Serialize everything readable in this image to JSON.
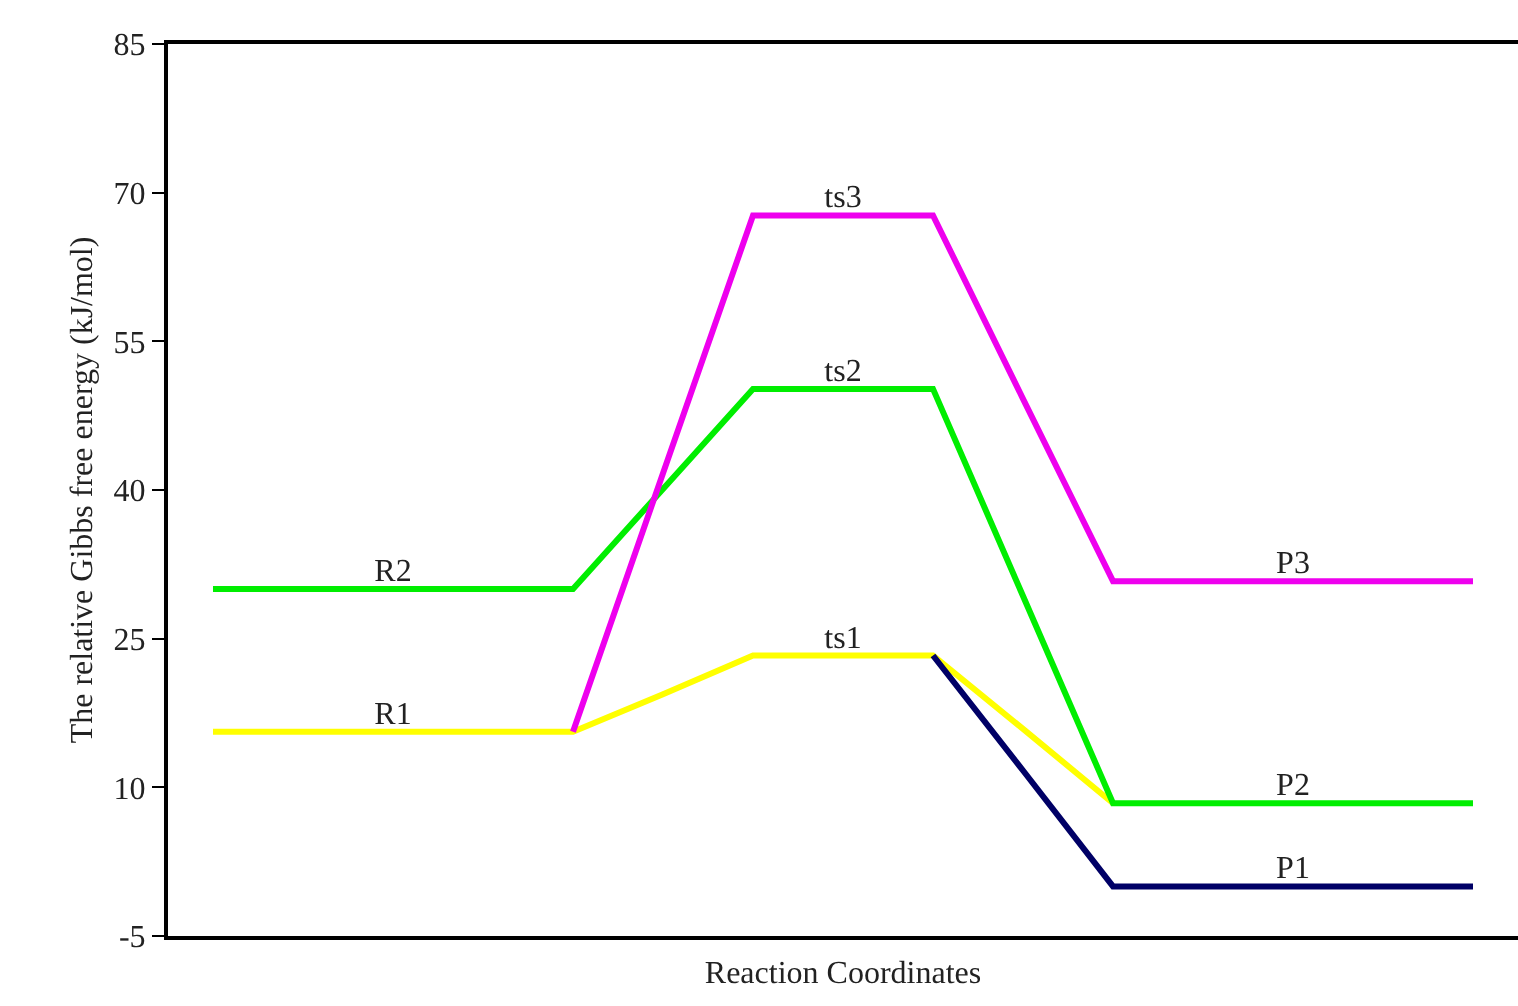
{
  "chart_data": {
    "type": "line",
    "xlabel": "Reaction Coordinates",
    "ylabel": "The relative Gibbs free energy (kJ/mol)",
    "categories": [
      null,
      null,
      null,
      null,
      null,
      null,
      null,
      null,
      null,
      null,
      null,
      null,
      null,
      null,
      null
    ],
    "series": [
      {
        "color": "#ffff00",
        "values": [
          15.6,
          15.6,
          15.6,
          15.6,
          15.6,
          19.4,
          23.3,
          23.3,
          23.3,
          15.9,
          8.4,
          null,
          null,
          null,
          null
        ],
        "value_labels": [
          null,
          null,
          "R1",
          null,
          null,
          null,
          null,
          "ts1",
          null,
          null,
          null,
          null,
          null,
          null,
          null
        ]
      },
      {
        "color": "#000066",
        "values": [
          null,
          null,
          null,
          null,
          null,
          null,
          null,
          null,
          23.3,
          11.7,
          0,
          0,
          0,
          0,
          0
        ],
        "value_labels": [
          null,
          null,
          null,
          null,
          null,
          null,
          null,
          null,
          null,
          null,
          null,
          null,
          "P1",
          null,
          null
        ]
      },
      {
        "color": "#00ee00",
        "values": [
          30,
          30,
          30,
          30,
          30,
          40.1,
          50.2,
          50.2,
          50.2,
          29.3,
          8.4,
          8.4,
          8.4,
          8.4,
          8.4
        ],
        "value_labels": [
          null,
          null,
          "R2",
          null,
          null,
          null,
          null,
          "ts2",
          null,
          null,
          null,
          null,
          "P2",
          null,
          null
        ]
      },
      {
        "color": "#ee00ee",
        "values": [
          null,
          null,
          null,
          null,
          15.6,
          41.7,
          67.7,
          67.7,
          67.7,
          49.2,
          30.8,
          30.8,
          30.8,
          30.8,
          30.8
        ],
        "value_labels": [
          null,
          null,
          null,
          null,
          null,
          null,
          null,
          "ts3",
          null,
          null,
          null,
          null,
          "P3",
          null,
          null
        ]
      }
    ],
    "ylim": [
      -5,
      85
    ],
    "yticks": [
      -5,
      10,
      25,
      40,
      55,
      70,
      85
    ],
    "tick_labels": "y",
    "marker": "none",
    "line_style": "solid"
  }
}
